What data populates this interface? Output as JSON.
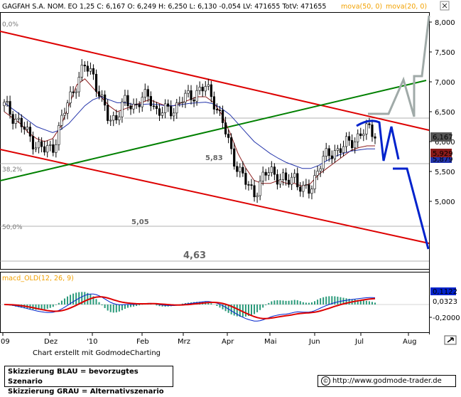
{
  "header": {
    "text": "GAGFAH S.A. NOM.  EO 1,25 C: 6,167  O: 6,249  H: 6,250  L: 6,130  -0,054  LV: 471655  TotV: 471655",
    "ma_labels": [
      "mova(50, 0)",
      "mova(20, 0)"
    ],
    "ma_color": "#f2a100"
  },
  "price_axis": {
    "ticks": [
      "8,000",
      "7,500",
      "7,000",
      "6,500",
      "6,000",
      "5,500",
      "5,000"
    ]
  },
  "price_tags": {
    "last": "6,167",
    "ma_red": "5,929",
    "ma_blue": "5,879"
  },
  "levels": {
    "l583": "5,83",
    "l505": "5,05",
    "l463": "4,63"
  },
  "fib": {
    "f0": "0,0%",
    "f382": "38,2%",
    "f50": "50,0%"
  },
  "macd": {
    "label": "macd_OLD(12, 26, 9)",
    "tags": [
      "0,1122",
      "0,0323"
    ],
    "axis_tick": "-0,2000"
  },
  "time_axis": [
    "09",
    "Dez",
    "'10",
    "Feb",
    "Mrz",
    "Apr",
    "Mai",
    "Jun",
    "Jul",
    "Aug"
  ],
  "credit": "Chart erstellt mit GodmodeCharting",
  "legend": [
    "Skizzierung BLAU = bevorzugtes Szenario",
    "Skizzierung GRAU = Alternativszenario"
  ],
  "url": "http://www.godmode-trader.de",
  "colors": {
    "channel": "#dd0000",
    "trend": "#008000",
    "blue": "#0022cc",
    "grey": "#a0aaa8"
  },
  "chart_data": {
    "type": "line",
    "title": "GAGFAH S.A. NOM.",
    "ylim": [
      4.6,
      8.3
    ],
    "ohlc_last": {
      "open": 6.249,
      "high": 6.25,
      "low": 6.13,
      "close": 6.167,
      "change": -0.054
    },
    "months": [
      "Dez",
      "'10",
      "Feb",
      "Mrz",
      "Apr",
      "Mai",
      "Jun",
      "Jul",
      "Aug"
    ],
    "series": [
      {
        "name": "GAGFAH S.A. NOM.",
        "values": [
          6.6,
          6.45,
          6.3,
          6.1,
          5.95,
          5.85,
          5.9,
          6.3,
          6.7,
          7.0,
          7.25,
          7.15,
          6.7,
          6.35,
          6.45,
          6.65,
          6.6,
          6.7,
          6.75,
          6.5,
          6.5,
          6.55,
          6.7,
          6.75,
          6.85,
          6.9,
          6.7,
          6.35,
          5.9,
          5.55,
          5.3,
          5.15,
          5.35,
          5.55,
          5.4,
          5.3,
          5.45,
          5.15,
          5.2,
          5.6,
          5.75,
          5.85,
          5.9,
          6.0,
          6.1,
          6.2,
          6.167
        ]
      },
      {
        "name": "mova(20, 0)",
        "values": [
          6.5,
          6.4,
          6.3,
          6.15,
          6.05,
          6.0,
          6.05,
          6.25,
          6.6,
          6.95,
          7.05,
          6.9,
          6.75,
          6.6,
          6.5,
          6.55,
          6.6,
          6.65,
          6.7,
          6.65,
          6.6,
          6.6,
          6.65,
          6.7,
          6.75,
          6.75,
          6.65,
          6.45,
          6.15,
          5.8,
          5.55,
          5.35,
          5.3,
          5.3,
          5.35,
          5.3,
          5.3,
          5.25,
          5.3,
          5.45,
          5.55,
          5.65,
          5.75,
          5.85,
          5.9,
          5.929,
          5.929
        ]
      },
      {
        "name": "mova(50, 0)",
        "values": [
          6.65,
          6.55,
          6.45,
          6.35,
          6.25,
          6.2,
          6.15,
          6.2,
          6.3,
          6.45,
          6.6,
          6.7,
          6.75,
          6.7,
          6.65,
          6.65,
          6.62,
          6.62,
          6.63,
          6.62,
          6.6,
          6.6,
          6.62,
          6.64,
          6.65,
          6.66,
          6.63,
          6.55,
          6.45,
          6.3,
          6.15,
          6.0,
          5.9,
          5.8,
          5.72,
          5.65,
          5.6,
          5.55,
          5.55,
          5.6,
          5.68,
          5.75,
          5.8,
          5.84,
          5.86,
          5.879,
          5.879
        ]
      }
    ],
    "levels": [
      5.83,
      5.05,
      4.63
    ],
    "macd_values": [
      0.1122,
      0.0323
    ]
  }
}
